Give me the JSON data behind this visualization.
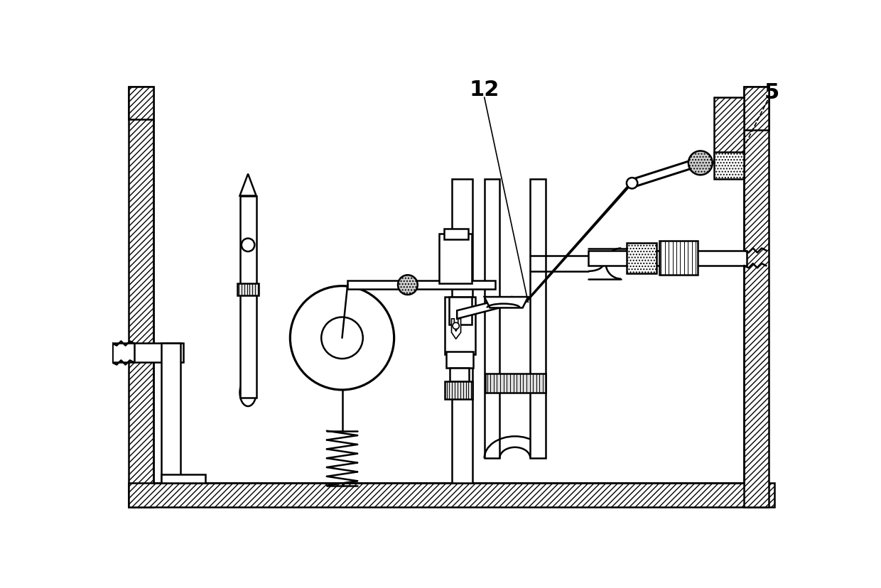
{
  "bg_color": "#ffffff",
  "lc": "#000000",
  "figsize": [
    12.4,
    8.29
  ],
  "dpi": 100,
  "label_12": "12",
  "label_5": "5"
}
